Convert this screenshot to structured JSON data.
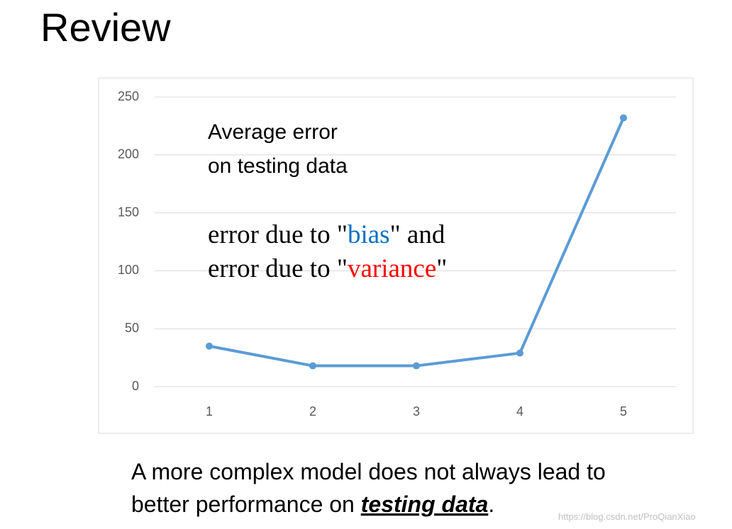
{
  "title": "Review",
  "chart_data": {
    "type": "line",
    "categories": [
      "1",
      "2",
      "3",
      "4",
      "5"
    ],
    "values": [
      35,
      18,
      18,
      29,
      232
    ],
    "color": "#5b9bd5",
    "ylim": [
      0,
      250
    ],
    "yticks": [
      0,
      50,
      100,
      150,
      200,
      250
    ],
    "grid": true,
    "annotations": [
      {
        "font": "sans",
        "lines": [
          [
            {
              "text": "Average error",
              "color": "#000000"
            }
          ],
          [
            {
              "text": "on testing data",
              "color": "#000000"
            }
          ]
        ]
      },
      {
        "font": "serif",
        "lines": [
          [
            {
              "text": "error due to \"",
              "color": "#000000"
            },
            {
              "text": "bias",
              "color": "#0070c0"
            },
            {
              "text": "\" and",
              "color": "#000000"
            }
          ],
          [
            {
              "text": "error due to \"",
              "color": "#000000"
            },
            {
              "text": "variance",
              "color": "#ff0000"
            },
            {
              "text": "\"",
              "color": "#000000"
            }
          ]
        ]
      }
    ]
  },
  "footer": {
    "lines": [
      [
        {
          "text": "A more complex model does not always lead to"
        }
      ],
      [
        {
          "text": "better performance on "
        },
        {
          "text": "testing data",
          "style": "bold-italic-underline"
        },
        {
          "text": "."
        }
      ]
    ]
  },
  "watermark": "https://blog.csdn.net/ProQianXiao"
}
